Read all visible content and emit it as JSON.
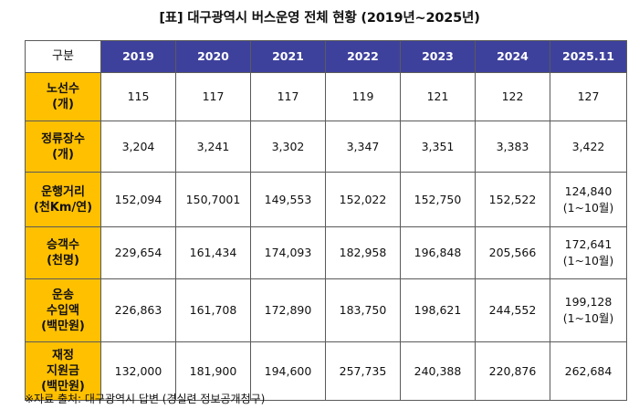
{
  "title": "[표] 대구광역시 버스운영 전체 현황 (2019년~2025년)",
  "table": {
    "corner": "구분",
    "years": [
      "2019",
      "2020",
      "2021",
      "2022",
      "2023",
      "2024",
      "2025.11"
    ],
    "rows": [
      {
        "label": [
          "노선수",
          "(개)"
        ],
        "values": [
          [
            "115"
          ],
          [
            "117"
          ],
          [
            "117"
          ],
          [
            "119"
          ],
          [
            "121"
          ],
          [
            "122"
          ],
          [
            "127"
          ]
        ]
      },
      {
        "label": [
          "정류장수",
          "(개)"
        ],
        "values": [
          [
            "3,204"
          ],
          [
            "3,241"
          ],
          [
            "3,302"
          ],
          [
            "3,347"
          ],
          [
            "3,351"
          ],
          [
            "3,383"
          ],
          [
            "3,422"
          ]
        ]
      },
      {
        "label": [
          "운행거리",
          "(천Km/연)"
        ],
        "values": [
          [
            "152,094"
          ],
          [
            "150,7001"
          ],
          [
            "149,553"
          ],
          [
            "152,022"
          ],
          [
            "152,750"
          ],
          [
            "152,522"
          ],
          [
            "124,840",
            "(1~10월)"
          ]
        ]
      },
      {
        "label": [
          "승객수",
          "(천명)"
        ],
        "values": [
          [
            "229,654"
          ],
          [
            "161,434"
          ],
          [
            "174,093"
          ],
          [
            "182,958"
          ],
          [
            "196,848"
          ],
          [
            "205,566"
          ],
          [
            "172,641",
            "(1~10월)"
          ]
        ]
      },
      {
        "label": [
          "운송",
          "수입액",
          "(백만원)"
        ],
        "values": [
          [
            "226,863"
          ],
          [
            "161,708"
          ],
          [
            "172,890"
          ],
          [
            "183,750"
          ],
          [
            "198,621"
          ],
          [
            "244,552"
          ],
          [
            "199,128",
            "(1~10월)"
          ]
        ]
      },
      {
        "label": [
          "재정",
          "지원금",
          "(백만원)"
        ],
        "values": [
          [
            "132,000"
          ],
          [
            "181,900"
          ],
          [
            "194,600"
          ],
          [
            "257,735"
          ],
          [
            "240,388"
          ],
          [
            "220,876"
          ],
          [
            "262,684"
          ]
        ]
      }
    ]
  },
  "note": "※자료 출처: 대구광역시 답변 (경실련 정보공개청구)"
}
